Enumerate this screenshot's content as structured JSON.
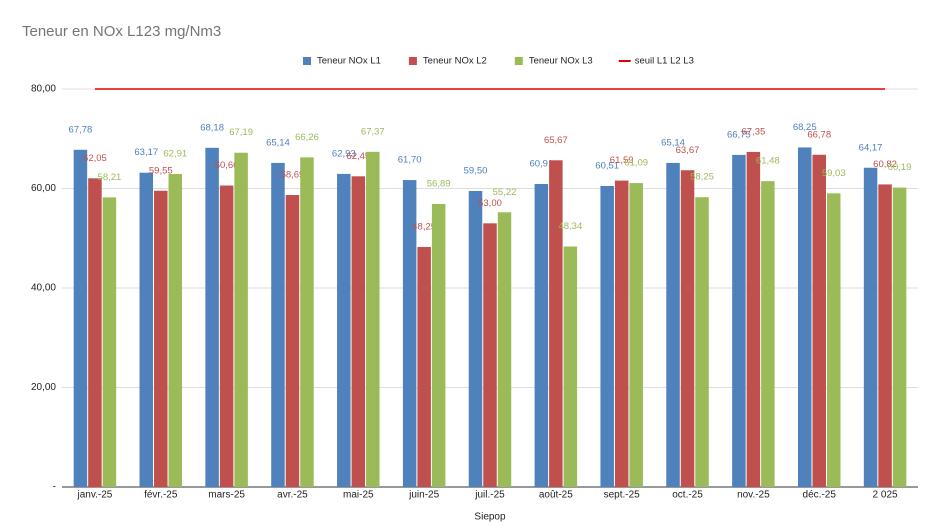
{
  "chart_data": {
    "type": "bar",
    "title": "Teneur en NOx L123 mg/Nm3",
    "x_label": "Siepop",
    "categories": [
      "janv.-25",
      "févr.-25",
      "mars-25",
      "avr.-25",
      "mai-25",
      "juin-25",
      "juil.-25",
      "août-25",
      "sept.-25",
      "oct.-25",
      "nov.-25",
      "déc.-25",
      "2 025"
    ],
    "series": [
      {
        "name": "Teneur NOx L1",
        "color": "#4f81bd",
        "values": [
          67.78,
          63.17,
          68.18,
          65.14,
          62.93,
          61.7,
          59.5,
          60.91,
          60.51,
          65.14,
          66.75,
          68.25,
          64.17
        ],
        "value_labels": [
          "67,78",
          "63,17",
          "68,18",
          "65,14",
          "62,93",
          "61,70",
          "59,50",
          "60,91",
          "60,51",
          "65,14",
          "66,75",
          "68,25",
          "64,17"
        ]
      },
      {
        "name": "Teneur NOx L2",
        "color": "#c0504d",
        "values": [
          62.05,
          59.55,
          60.6,
          58.69,
          62.45,
          48.25,
          53.0,
          65.67,
          61.59,
          63.67,
          67.35,
          66.78,
          60.82
        ],
        "value_labels": [
          "62,05",
          "59,55",
          "60,60",
          "58,69",
          "62,45",
          "48,25",
          "53,00",
          "65,67",
          "61,59",
          "63,67",
          "67,35",
          "66,78",
          "60,82"
        ]
      },
      {
        "name": "Teneur NOx L3",
        "color": "#9bbb59",
        "values": [
          58.21,
          62.91,
          67.19,
          66.26,
          67.37,
          56.89,
          55.22,
          48.34,
          61.09,
          58.25,
          61.48,
          59.03,
          60.19
        ],
        "value_labels": [
          "58,21",
          "62,91",
          "67,19",
          "66,26",
          "67,37",
          "56,89",
          "55,22",
          "48,34",
          "61,09",
          "58,25",
          "61,48",
          "59,03",
          "60,19"
        ]
      },
      {
        "name": "seuil L1 L2 L3",
        "color": "#e00000",
        "type": "line",
        "values": [
          80,
          80,
          80,
          80,
          80,
          80,
          80,
          80,
          80,
          80,
          80,
          80,
          80
        ]
      }
    ],
    "ylim": [
      0,
      80
    ],
    "yticks": [
      {
        "value": 0,
        "label": "-"
      },
      {
        "value": 20,
        "label": "20,00"
      },
      {
        "value": 40,
        "label": "40,00"
      },
      {
        "value": 60,
        "label": "60,00"
      },
      {
        "value": 80,
        "label": "80,00"
      }
    ],
    "grid": true,
    "legend": "top"
  }
}
